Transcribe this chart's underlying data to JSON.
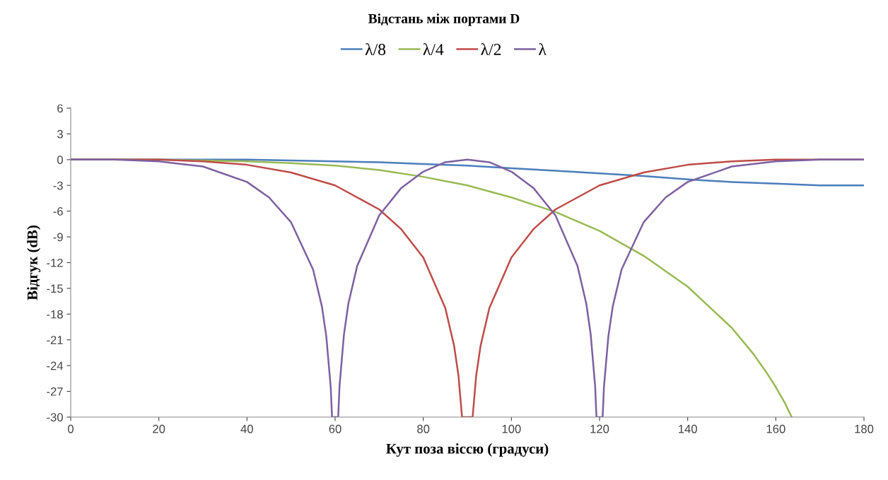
{
  "chart_data": {
    "type": "line",
    "title": "Відстань між портами D",
    "xlabel": "Кут поза віссю (градуси)",
    "ylabel": "Відгук (dB)",
    "xlim": [
      0,
      180
    ],
    "xticks": [
      0,
      20,
      40,
      60,
      80,
      100,
      120,
      140,
      160,
      180
    ],
    "ylim": [
      -30,
      6
    ],
    "yticks": [
      -30,
      -27,
      -24,
      -21,
      -18,
      -15,
      -12,
      -9,
      -6,
      -3,
      0,
      3,
      6
    ],
    "grid": false,
    "legend": "top",
    "marker": "none",
    "line_style": "solid",
    "series": [
      {
        "name": "λ/8",
        "color": "#4a7ebb",
        "x": [
          0,
          10,
          20,
          30,
          40,
          50,
          60,
          70,
          80,
          90,
          100,
          110,
          120,
          130,
          140,
          150,
          160,
          170,
          180
        ],
        "values": [
          0,
          0,
          0,
          0,
          0,
          -0.1,
          -0.2,
          -0.3,
          -0.5,
          -0.7,
          -1,
          -1.3,
          -1.6,
          -1.9,
          -2.3,
          -2.6,
          -2.8,
          -3,
          -3
        ]
      },
      {
        "name": "λ/4",
        "color": "#98b954",
        "x": [
          0,
          10,
          20,
          30,
          40,
          50,
          60,
          70,
          80,
          90,
          100,
          110,
          120,
          130,
          140,
          150,
          155,
          158,
          160,
          162,
          163.6
        ],
        "values": [
          0,
          0,
          0,
          -0.1,
          -0.2,
          -0.4,
          -0.7,
          -1.2,
          -2,
          -3,
          -4.4,
          -6.1,
          -8.3,
          -11.2,
          -14.8,
          -19.6,
          -22.7,
          -24.9,
          -26.5,
          -28.3,
          -30
        ]
      },
      {
        "name": "λ/2",
        "color": "#be4b48",
        "x": [
          0,
          10,
          20,
          30,
          40,
          50,
          60,
          70,
          75,
          80,
          85,
          87,
          88,
          88.8,
          91.2,
          92,
          93,
          95,
          100,
          105,
          110,
          120,
          130,
          140,
          150,
          160,
          170,
          180
        ],
        "values": [
          0,
          0,
          0,
          -0.2,
          -0.6,
          -1.5,
          -3,
          -5.8,
          -8.1,
          -11.4,
          -17.3,
          -21.7,
          -25.2,
          -30,
          -30,
          -25.2,
          -21.7,
          -17.3,
          -11.4,
          -8.1,
          -5.8,
          -3,
          -1.5,
          -0.6,
          -0.2,
          0,
          0,
          0
        ]
      },
      {
        "name": "λ",
        "color": "#7d60a0",
        "x": [
          0,
          10,
          20,
          30,
          40,
          45,
          50,
          55,
          57,
          58,
          59,
          59.3,
          60.7,
          61,
          62,
          63,
          65,
          70,
          75,
          80,
          85,
          90,
          95,
          100,
          105,
          110,
          115,
          117,
          118,
          119,
          119.3,
          120.7,
          121,
          122,
          123,
          125,
          130,
          135,
          140,
          150,
          160,
          170,
          180
        ],
        "values": [
          0,
          0,
          -0.2,
          -0.8,
          -2.6,
          -4.4,
          -7.3,
          -12.8,
          -17.1,
          -20.6,
          -26.5,
          -30,
          -30,
          -26.4,
          -20.4,
          -16.8,
          -12.4,
          -6.5,
          -3.3,
          -1.4,
          -0.3,
          0,
          -0.3,
          -1.4,
          -3.3,
          -6.5,
          -12.4,
          -16.8,
          -20.4,
          -26.4,
          -30,
          -30,
          -26.5,
          -20.6,
          -17.1,
          -12.8,
          -7.3,
          -4.4,
          -2.6,
          -0.8,
          -0.2,
          0,
          0
        ]
      }
    ]
  }
}
